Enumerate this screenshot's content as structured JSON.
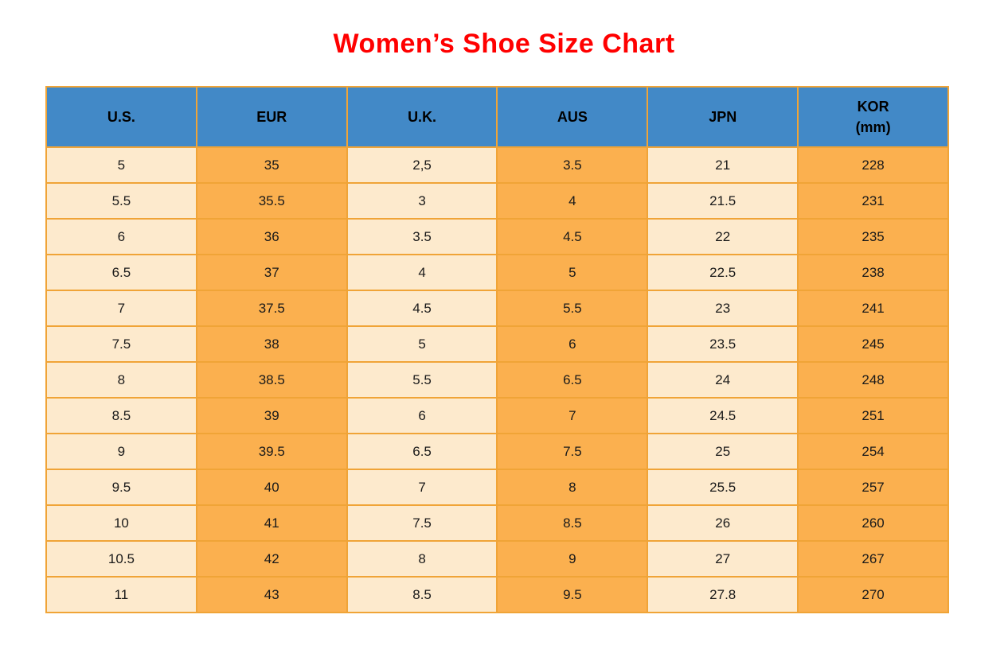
{
  "colors": {
    "title": "#ff0000",
    "header_bg": "#4289c7",
    "header_text": "#000000",
    "cell_light": "#fdeacd",
    "cell_orange": "#fbb04f",
    "border": "#f0a437"
  },
  "chart_data": {
    "type": "table",
    "title": "Women’s Shoe Size Chart",
    "columns": [
      {
        "label": "U.S.",
        "sublabel": "",
        "tone": "light"
      },
      {
        "label": "EUR",
        "sublabel": "",
        "tone": "orange"
      },
      {
        "label": "U.K.",
        "sublabel": "",
        "tone": "light"
      },
      {
        "label": "AUS",
        "sublabel": "",
        "tone": "orange"
      },
      {
        "label": "JPN",
        "sublabel": "",
        "tone": "light"
      },
      {
        "label": "KOR",
        "sublabel": "(mm)",
        "tone": "orange"
      }
    ],
    "rows": [
      [
        "5",
        "35",
        "2,5",
        "3.5",
        "21",
        "228"
      ],
      [
        "5.5",
        "35.5",
        "3",
        "4",
        "21.5",
        "231"
      ],
      [
        "6",
        "36",
        "3.5",
        "4.5",
        "22",
        "235"
      ],
      [
        "6.5",
        "37",
        "4",
        "5",
        "22.5",
        "238"
      ],
      [
        "7",
        "37.5",
        "4.5",
        "5.5",
        "23",
        "241"
      ],
      [
        "7.5",
        "38",
        "5",
        "6",
        "23.5",
        "245"
      ],
      [
        "8",
        "38.5",
        "5.5",
        "6.5",
        "24",
        "248"
      ],
      [
        "8.5",
        "39",
        "6",
        "7",
        "24.5",
        "251"
      ],
      [
        "9",
        "39.5",
        "6.5",
        "7.5",
        "25",
        "254"
      ],
      [
        "9.5",
        "40",
        "7",
        "8",
        "25.5",
        "257"
      ],
      [
        "10",
        "41",
        "7.5",
        "8.5",
        "26",
        "260"
      ],
      [
        "10.5",
        "42",
        "8",
        "9",
        "27",
        "267"
      ],
      [
        "11",
        "43",
        "8.5",
        "9.5",
        "27.8",
        "270"
      ]
    ]
  }
}
